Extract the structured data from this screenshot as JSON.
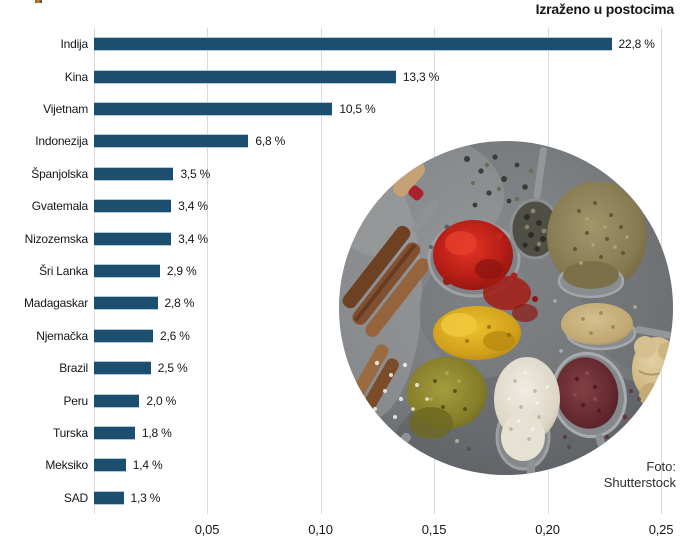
{
  "header": {
    "title": "Izraženo u postocima"
  },
  "chart_data": {
    "type": "bar",
    "orientation": "horizontal",
    "title": "Izraženo u postocima",
    "categories": [
      "Indija",
      "Kina",
      "Vijetnam",
      "Indonezija",
      "Španjolska",
      "Gvatemala",
      "Nizozemska",
      "Šri Lanka",
      "Madagaskar",
      "Njemačka",
      "Brazil",
      "Peru",
      "Turska",
      "Meksiko",
      "SAD"
    ],
    "values": [
      22.8,
      13.3,
      10.5,
      6.8,
      3.5,
      3.4,
      3.4,
      2.9,
      2.8,
      2.6,
      2.5,
      2.0,
      1.8,
      1.4,
      1.3
    ],
    "value_labels": [
      "22,8 %",
      "13,3 %",
      "10,5 %",
      "6,8 %",
      "3,5 %",
      "3,4 %",
      "3,4 %",
      "2,9 %",
      "2,8 %",
      "2,6 %",
      "2,5 %",
      "2,0 %",
      "1,8 %",
      "1,4 %",
      "1,3 %"
    ],
    "x_ticks": [
      {
        "value": 5,
        "label": "0,05"
      },
      {
        "value": 10,
        "label": "0,10"
      },
      {
        "value": 15,
        "label": "0,15"
      },
      {
        "value": 20,
        "label": "0,20"
      },
      {
        "value": 25,
        "label": "0,25"
      }
    ],
    "xlim": [
      0,
      25
    ],
    "grid": true,
    "legend": false
  },
  "photo": {
    "credit_line1": "Foto:",
    "credit_line2": "Shutterstock"
  },
  "colors": {
    "bar": "#1c4e70",
    "bar_edge": "#b4c9d8",
    "grid": "#dadada",
    "text": "#161616"
  }
}
